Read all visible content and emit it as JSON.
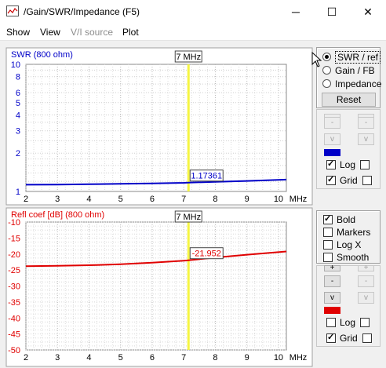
{
  "window": {
    "title": "/Gain/SWR/Impedance (F5)",
    "icon": "chart-app-icon",
    "controls": {
      "minimize": "─",
      "maximize": "☐",
      "close": "✕"
    }
  },
  "menu": [
    {
      "label": "Show",
      "enabled": true
    },
    {
      "label": "View",
      "enabled": true
    },
    {
      "label": "V/I source",
      "enabled": false
    },
    {
      "label": "Plot",
      "enabled": true
    }
  ],
  "colors": {
    "swr": "#0000c8",
    "refl": "#e00000",
    "marker": "#f5f542"
  },
  "right_panel": {
    "mode_options": [
      {
        "label": "SWR / ref",
        "checked": true
      },
      {
        "label": "Gain / FB",
        "checked": false
      },
      {
        "label": "Impedance",
        "checked": false
      }
    ],
    "reset_label": "Reset",
    "top_controls": {
      "minus_label": "-",
      "v_label": "v",
      "log_label": "Log",
      "log_checked": true,
      "grid_label": "Grid",
      "grid_checked": true
    },
    "bottom_options": [
      {
        "label": "Bold",
        "checked": true
      },
      {
        "label": "Markers",
        "checked": false
      },
      {
        "label": "Log X",
        "checked": false
      },
      {
        "label": "Smooth",
        "checked": false
      }
    ],
    "bottom_controls": {
      "plus_label": "+",
      "minus_label": "-",
      "v_label": "v",
      "log_label": "Log",
      "log_checked": false,
      "grid_label": "Grid",
      "grid_checked": true
    }
  },
  "chart_data": [
    {
      "type": "line",
      "title": "SWR (800 ohm)",
      "xlabel": "MHz",
      "xlim": [
        2,
        10.25
      ],
      "x_ticks": [
        2,
        3,
        4,
        5,
        6,
        7,
        8,
        9,
        10
      ],
      "ylim": [
        1,
        10
      ],
      "y_scale": "log",
      "y_ticks": [
        1,
        2,
        3,
        4,
        5,
        6,
        8,
        10
      ],
      "grid": true,
      "marker": {
        "x": 7.15,
        "label": "7 MHz"
      },
      "cursor_value": "1.17361",
      "series": [
        {
          "color": "#0000c8",
          "x": [
            2,
            3,
            4,
            5,
            6,
            7,
            7.15,
            8,
            9,
            10.25
          ],
          "y": [
            1.13,
            1.134,
            1.14,
            1.148,
            1.158,
            1.17,
            1.174,
            1.19,
            1.21,
            1.24
          ]
        }
      ]
    },
    {
      "type": "line",
      "title": "Refl coef [dB] (800 ohm)",
      "xlabel": "MHz",
      "xlim": [
        2,
        10.25
      ],
      "x_ticks": [
        2,
        3,
        4,
        5,
        6,
        7,
        8,
        9,
        10
      ],
      "ylim": [
        -50,
        -10
      ],
      "y_ticks": [
        -10,
        -15,
        -20,
        -25,
        -30,
        -35,
        -40,
        -45,
        -50
      ],
      "grid": true,
      "marker": {
        "x": 7.15,
        "label": "7 MHz"
      },
      "cursor_value": "-21.952",
      "series": [
        {
          "color": "#e00000",
          "x": [
            2,
            3,
            4,
            5,
            6,
            7,
            7.15,
            8,
            9,
            10.25
          ],
          "y": [
            -23.8,
            -23.7,
            -23.5,
            -23.2,
            -22.7,
            -22.1,
            -21.952,
            -21.1,
            -20.2,
            -19.2
          ]
        }
      ]
    }
  ]
}
